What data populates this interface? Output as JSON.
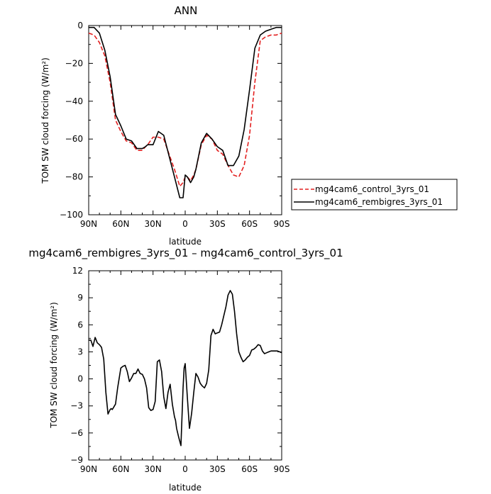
{
  "chart_data": [
    {
      "type": "line",
      "title": "ANN",
      "xlabel": "latitude",
      "ylabel": "TOM SW cloud forcing (W/m²)",
      "xlim": [
        90,
        -90
      ],
      "ylim": [
        -100,
        0
      ],
      "x_ticks": [
        90,
        60,
        30,
        0,
        -30,
        -60,
        -90
      ],
      "x_tick_labels": [
        "90N",
        "60N",
        "30N",
        "0",
        "30S",
        "60S",
        "90S"
      ],
      "y_ticks": [
        0,
        -20,
        -40,
        -60,
        -80,
        -100
      ],
      "y_tick_labels": [
        "0",
        "−20",
        "−40",
        "−60",
        "−80",
        "−100"
      ],
      "legend_position": "right",
      "series": [
        {
          "name": "mg4cam6_control_3yrs_01",
          "color": "#e32020",
          "dash": "dashed",
          "x": [
            90,
            85,
            80,
            75,
            70,
            65,
            60,
            55,
            50,
            45,
            40,
            37,
            35,
            30,
            25,
            20,
            15,
            10,
            5,
            2,
            0,
            -2,
            -5,
            -8,
            -10,
            -15,
            -20,
            -25,
            -30,
            -35,
            -40,
            -45,
            -50,
            -55,
            -60,
            -65,
            -70,
            -75,
            -80,
            -85,
            -90
          ],
          "y": [
            -4,
            -5,
            -9,
            -16,
            -30,
            -50,
            -56,
            -61,
            -62,
            -66,
            -66,
            -64,
            -63,
            -59,
            -59,
            -60,
            -68,
            -76,
            -85,
            -83,
            -80,
            -80,
            -82,
            -79,
            -76,
            -63,
            -58,
            -60,
            -66,
            -68,
            -74,
            -79,
            -80,
            -74,
            -58,
            -30,
            -8,
            -6,
            -5,
            -5,
            -4
          ]
        },
        {
          "name": "mg4cam6_rembigres_3yrs_01",
          "color": "#000000",
          "dash": "solid",
          "x": [
            90,
            85,
            80,
            75,
            70,
            65,
            60,
            55,
            50,
            45,
            40,
            37,
            35,
            30,
            25,
            20,
            15,
            10,
            5,
            2,
            0,
            -2,
            -5,
            -8,
            -10,
            -15,
            -20,
            -25,
            -30,
            -35,
            -40,
            -45,
            -50,
            -55,
            -60,
            -65,
            -70,
            -75,
            -80,
            -85,
            -90
          ],
          "y": [
            -1,
            -1,
            -4,
            -13,
            -27,
            -47,
            -53,
            -60,
            -61,
            -65,
            -65,
            -64,
            -63,
            -63,
            -56,
            -58,
            -69,
            -80,
            -91,
            -91,
            -79,
            -80,
            -83,
            -80,
            -76,
            -62,
            -57,
            -60,
            -64,
            -66,
            -74,
            -74,
            -69,
            -55,
            -34,
            -12,
            -5,
            -3,
            -2,
            -1,
            -1
          ]
        }
      ]
    },
    {
      "type": "line",
      "title": "mg4cam6_rembigres_3yrs_01 – mg4cam6_control_3yrs_01",
      "xlabel": "latitude",
      "ylabel": "TOM SW cloud forcing (W/m²)",
      "xlim": [
        90,
        -90
      ],
      "ylim": [
        -9,
        12
      ],
      "x_ticks": [
        90,
        60,
        30,
        0,
        -30,
        -60,
        -90
      ],
      "x_tick_labels": [
        "90N",
        "60N",
        "30N",
        "0",
        "30S",
        "60S",
        "90S"
      ],
      "y_ticks": [
        12,
        9,
        6,
        3,
        0,
        -3,
        -6,
        -9
      ],
      "y_tick_labels": [
        "12",
        "9",
        "6",
        "3",
        "0",
        "−3",
        "−6",
        "−9"
      ],
      "series": [
        {
          "color": "#000000",
          "x": [
            90,
            88,
            86,
            84,
            82,
            80,
            78,
            76,
            74,
            72,
            70,
            69,
            68,
            67,
            66,
            65,
            63,
            60,
            58,
            56,
            54,
            52,
            50,
            48,
            46,
            44,
            42,
            40,
            38,
            36,
            34,
            32,
            30,
            28,
            26,
            24,
            22,
            20,
            18,
            16,
            14,
            12,
            10,
            9,
            8,
            6,
            4,
            2,
            1,
            0,
            -2,
            -4,
            -6,
            -8,
            -10,
            -12,
            -14,
            -16,
            -18,
            -20,
            -22,
            -24,
            -26,
            -28,
            -30,
            -32,
            -34,
            -36,
            -38,
            -40,
            -42,
            -44,
            -46,
            -48,
            -50,
            -52,
            -54,
            -56,
            -58,
            -60,
            -62,
            -64,
            -66,
            -68,
            -70,
            -72,
            -74,
            -76,
            -78,
            -80,
            -82,
            -84,
            -86,
            -88,
            -90
          ],
          "y": [
            4.3,
            4.3,
            3.6,
            4.6,
            4.0,
            3.8,
            3.5,
            2.2,
            -1.5,
            -3.9,
            -3.4,
            -3.3,
            -3.4,
            -3.2,
            -3.0,
            -2.8,
            -1.0,
            1.2,
            1.4,
            1.5,
            0.8,
            -0.3,
            0.1,
            0.6,
            0.6,
            1.1,
            0.6,
            0.5,
            0.0,
            -1.0,
            -3.2,
            -3.5,
            -3.4,
            -2.5,
            1.9,
            2.1,
            0.8,
            -2.0,
            -3.3,
            -1.5,
            -0.6,
            -2.8,
            -4.2,
            -4.6,
            -5.5,
            -6.5,
            -7.4,
            -1.0,
            1.2,
            1.7,
            -2.0,
            -5.5,
            -3.8,
            -1.5,
            0.6,
            0.2,
            -0.5,
            -0.8,
            -1.0,
            -0.5,
            1.0,
            4.8,
            5.5,
            5.0,
            5.1,
            5.2,
            6.0,
            7.0,
            8.0,
            9.3,
            9.8,
            9.4,
            7.5,
            5.0,
            3.0,
            2.4,
            1.9,
            2.1,
            2.4,
            2.6,
            3.2,
            3.3,
            3.5,
            3.8,
            3.7,
            3.1,
            2.8,
            2.9,
            3.0,
            3.1,
            3.1,
            3.1,
            3.1,
            3.0,
            2.9
          ]
        }
      ]
    }
  ]
}
